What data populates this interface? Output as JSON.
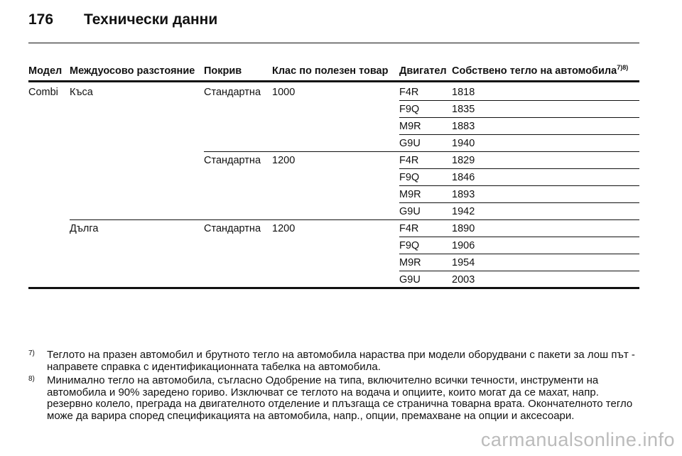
{
  "header": {
    "page_number": "176",
    "title": "Технически данни"
  },
  "table": {
    "columns": [
      "Модел",
      "Междуосово разстояние",
      "Покрив",
      "Клас по полезен товар",
      "Двигател",
      "Собствено тегло на автомобила"
    ],
    "column_note": "7)8)",
    "rows": [
      [
        {
          "col": 0,
          "text": "Combi"
        },
        {
          "col": 1,
          "text": "Къса"
        },
        {
          "col": 2,
          "text": "Стандартна"
        },
        {
          "col": 3,
          "text": "1000"
        },
        {
          "col": 4,
          "text": "F4R"
        },
        {
          "col": 5,
          "text": "1818"
        }
      ],
      [
        {
          "col": 4,
          "text": "F9Q"
        },
        {
          "col": 5,
          "text": "1835"
        }
      ],
      [
        {
          "col": 4,
          "text": "M9R"
        },
        {
          "col": 5,
          "text": "1883"
        }
      ],
      [
        {
          "col": 4,
          "text": "G9U"
        },
        {
          "col": 5,
          "text": "1940"
        }
      ],
      [
        {
          "col": 2,
          "text": "Стандартна"
        },
        {
          "col": 3,
          "text": "1200"
        },
        {
          "col": 4,
          "text": "F4R"
        },
        {
          "col": 5,
          "text": "1829"
        }
      ],
      [
        {
          "col": 4,
          "text": "F9Q"
        },
        {
          "col": 5,
          "text": "1846"
        }
      ],
      [
        {
          "col": 4,
          "text": "M9R"
        },
        {
          "col": 5,
          "text": "1893"
        }
      ],
      [
        {
          "col": 4,
          "text": "G9U"
        },
        {
          "col": 5,
          "text": "1942"
        }
      ],
      [
        {
          "col": 1,
          "text": "Дълга"
        },
        {
          "col": 2,
          "text": "Стандартна"
        },
        {
          "col": 3,
          "text": "1200"
        },
        {
          "col": 4,
          "text": "F4R"
        },
        {
          "col": 5,
          "text": "1890"
        }
      ],
      [
        {
          "col": 4,
          "text": "F9Q"
        },
        {
          "col": 5,
          "text": "1906"
        }
      ],
      [
        {
          "col": 4,
          "text": "M9R"
        },
        {
          "col": 5,
          "text": "1954"
        }
      ],
      [
        {
          "col": 4,
          "text": "G9U"
        },
        {
          "col": 5,
          "text": "2003"
        }
      ]
    ]
  },
  "footnotes": [
    {
      "marker": "7)",
      "text": "Теглото на празен автомобил и брутното тегло на автомобила нараства при модели оборудвани с пакети за лош път - направете справка с идентификационната табелка на автомобила."
    },
    {
      "marker": "8)",
      "text": "Минимално тегло на автомобила, съгласно Одобрение на типа, включително всички течности, инструменти на автомобила и 90% заредено гориво. Изключват се теглото на водача и опциите, които могат да се махат, напр. резервно колело, преграда на двигателното отделение и плъзгаща се странична товарна врата. Окончателното тегло може да варира според спецификацията на автомобила, напр., опции, премахване на опции и аксесоари."
    }
  ],
  "watermark": "carmanualsonline.info"
}
